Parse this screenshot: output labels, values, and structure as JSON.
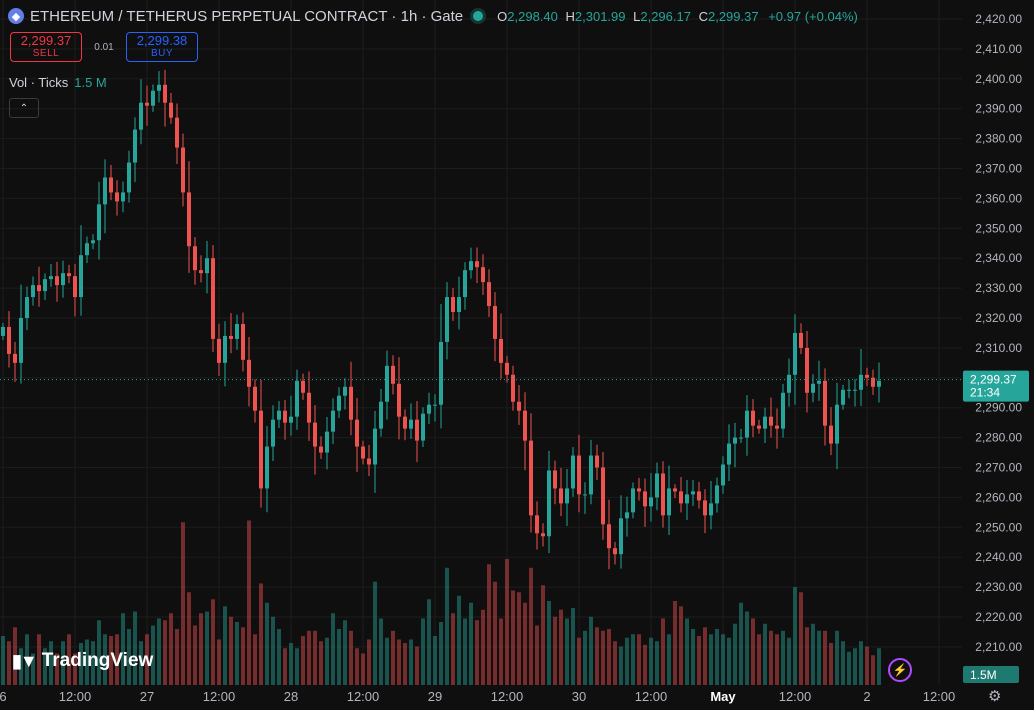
{
  "header": {
    "symbol_icon": "ethereum-icon",
    "title": "ETHEREUM / TETHERUS PERPETUAL CONTRACT · 1h · Gate",
    "ohlc": {
      "o_label": "O",
      "o": "2,298.40",
      "h_label": "H",
      "h": "2,301.99",
      "l_label": "L",
      "l": "2,296.17",
      "c_label": "C",
      "c": "2,299.37",
      "change": "+0.97 (+0.04%)"
    }
  },
  "trade": {
    "sell_price": "2,299.37",
    "sell_label": "SELL",
    "spread": "0.01",
    "buy_price": "2,299.38",
    "buy_label": "BUY"
  },
  "volume_legend": {
    "label": "Vol · Ticks",
    "value": "1.5 M"
  },
  "collapse_icon": "chevron-up-icon",
  "logo_text": "TradingView",
  "colors": {
    "up": "#26a69a",
    "down": "#ef5350",
    "background": "#0f0f0f",
    "grid": "#1c1c1c"
  },
  "chart_data": {
    "type": "candlestick",
    "ylim": [
      2200,
      2424
    ],
    "y_ticks": [
      "2,420.00",
      "2,410.00",
      "2,400.00",
      "2,390.00",
      "2,380.00",
      "2,370.00",
      "2,360.00",
      "2,350.00",
      "2,340.00",
      "2,330.00",
      "2,320.00",
      "2,310.00",
      "2,300.00",
      "2,290.00",
      "2,280.00",
      "2,270.00",
      "2,260.00",
      "2,250.00",
      "2,240.00",
      "2,230.00",
      "2,220.00",
      "2,210.00"
    ],
    "x_ticks": [
      {
        "label": "6",
        "bar": 0
      },
      {
        "label": "12:00",
        "bar": 12
      },
      {
        "label": "27",
        "bar": 24
      },
      {
        "label": "12:00",
        "bar": 36
      },
      {
        "label": "28",
        "bar": 48
      },
      {
        "label": "12:00",
        "bar": 60
      },
      {
        "label": "29",
        "bar": 72
      },
      {
        "label": "12:00",
        "bar": 84
      },
      {
        "label": "30",
        "bar": 96
      },
      {
        "label": "12:00",
        "bar": 108
      },
      {
        "label": "May",
        "bar": 120
      },
      {
        "label": "12:00",
        "bar": 132
      },
      {
        "label": "2",
        "bar": 144
      },
      {
        "label": "12:00",
        "bar": 156
      }
    ],
    "last_price": {
      "value": 2299.37,
      "label": "2,299.37",
      "countdown": "21:34"
    },
    "volume_badge": "1.5M",
    "closes": [
      2317,
      2308,
      2305,
      2320,
      2327,
      2331,
      2329,
      2333,
      2334,
      2331,
      2335,
      2334,
      2327,
      2341,
      2345,
      2346,
      2358,
      2367,
      2362,
      2359,
      2362,
      2372,
      2383,
      2392,
      2391,
      2396,
      2398,
      2392,
      2387,
      2377,
      2362,
      2344,
      2336,
      2335,
      2340,
      2313,
      2305,
      2314,
      2313,
      2318,
      2306,
      2297,
      2289,
      2263,
      2277,
      2286,
      2289,
      2285,
      2287,
      2299,
      2295,
      2285,
      2277,
      2275,
      2282,
      2289,
      2294,
      2297,
      2286,
      2277,
      2273,
      2271,
      2283,
      2292,
      2304,
      2298,
      2287,
      2283,
      2286,
      2279,
      2288,
      2291,
      2291,
      2312,
      2327,
      2322,
      2327,
      2336,
      2339,
      2337,
      2332,
      2324,
      2313,
      2305,
      2301,
      2292,
      2289,
      2279,
      2254,
      2248,
      2247,
      2269,
      2263,
      2258,
      2263,
      2274,
      2261,
      2261,
      2274,
      2270,
      2251,
      2243,
      2241,
      2253,
      2255,
      2263,
      2262,
      2257,
      2260,
      2268,
      2254,
      2263,
      2262,
      2258,
      2261,
      2262,
      2259,
      2254,
      2258,
      2264,
      2271,
      2278,
      2280,
      2280,
      2289,
      2284,
      2283,
      2287,
      2284,
      2283,
      2295,
      2301,
      2315,
      2310,
      2295,
      2298,
      2299,
      2284,
      2278,
      2291,
      2296,
      2296,
      2296,
      2301,
      2300,
      2297,
      2299
    ],
    "volume_rel": [
      0.28,
      0.25,
      0.33,
      0.21,
      0.29,
      0.18,
      0.29,
      0.21,
      0.25,
      0.18,
      0.25,
      0.29,
      0.18,
      0.24,
      0.26,
      0.25,
      0.37,
      0.29,
      0.28,
      0.29,
      0.41,
      0.32,
      0.42,
      0.25,
      0.29,
      0.34,
      0.38,
      0.37,
      0.41,
      0.32,
      0.93,
      0.53,
      0.34,
      0.41,
      0.42,
      0.49,
      0.26,
      0.45,
      0.39,
      0.36,
      0.33,
      0.94,
      0.29,
      0.58,
      0.47,
      0.39,
      0.32,
      0.21,
      0.24,
      0.21,
      0.28,
      0.31,
      0.31,
      0.25,
      0.27,
      0.41,
      0.32,
      0.37,
      0.31,
      0.21,
      0.18,
      0.26,
      0.59,
      0.38,
      0.27,
      0.31,
      0.26,
      0.24,
      0.26,
      0.22,
      0.38,
      0.49,
      0.28,
      0.36,
      0.67,
      0.41,
      0.51,
      0.38,
      0.47,
      0.37,
      0.43,
      0.69,
      0.59,
      0.38,
      0.72,
      0.54,
      0.53,
      0.47,
      0.67,
      0.34,
      0.57,
      0.48,
      0.39,
      0.43,
      0.38,
      0.44,
      0.27,
      0.31,
      0.39,
      0.33,
      0.31,
      0.32,
      0.25,
      0.22,
      0.27,
      0.29,
      0.29,
      0.23,
      0.27,
      0.25,
      0.38,
      0.29,
      0.48,
      0.45,
      0.38,
      0.32,
      0.28,
      0.33,
      0.29,
      0.32,
      0.29,
      0.27,
      0.35,
      0.47,
      0.42,
      0.38,
      0.29,
      0.35,
      0.31,
      0.29,
      0.31,
      0.27,
      0.56,
      0.53,
      0.33,
      0.35,
      0.31,
      0.31,
      0.24,
      0.31,
      0.25,
      0.19,
      0.21,
      0.25,
      0.22,
      0.17,
      0.21
    ]
  }
}
